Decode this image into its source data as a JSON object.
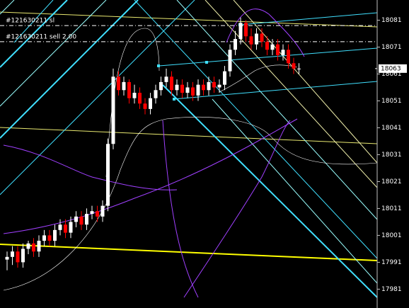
{
  "chart_data": {
    "type": "candlestick",
    "ylim": [
      17974,
      18088.5
    ],
    "yticks": [
      18081,
      18071,
      18061,
      18051,
      18041,
      18031,
      18021,
      18011,
      18001,
      17991,
      17981
    ],
    "up_color": "#ffffff",
    "down_color": "#ff0000",
    "open": [
      17992,
      17993,
      17995,
      17991,
      17996,
      17998,
      17995,
      17999,
      18001,
      17999,
      18003,
      18005,
      18002,
      18006,
      18008,
      18005,
      18009,
      18010,
      18008,
      18012,
      18035,
      18060,
      18055,
      18058,
      18052,
      18054,
      18050,
      18048,
      18052,
      18055,
      18058,
      18060,
      18055,
      18057,
      18054,
      18056,
      18053,
      18057,
      18055,
      18058,
      18056,
      18057,
      18062,
      18070,
      18074,
      18080,
      18075,
      18072,
      18076,
      18073,
      18070,
      18072,
      18068,
      18070,
      18065,
      18063
    ],
    "high": [
      17995,
      17997,
      17997,
      17998,
      17999,
      18000,
      18001,
      18003,
      18003,
      18005,
      18007,
      18007,
      18008,
      18010,
      18010,
      18011,
      18012,
      18012,
      18014,
      18037,
      18063,
      18062,
      18060,
      18059,
      18057,
      18056,
      18052,
      18054,
      18057,
      18060,
      18063,
      18062,
      18059,
      18059,
      18058,
      18058,
      18059,
      18059,
      18060,
      18060,
      18059,
      18064,
      18072,
      18077,
      18082,
      18081,
      18078,
      18078,
      18078,
      18075,
      18074,
      18074,
      18072,
      18072,
      18067,
      18065
    ],
    "low": [
      17988,
      17990,
      17989,
      17989,
      17994,
      17993,
      17993,
      17997,
      17997,
      17997,
      18001,
      18000,
      18000,
      18004,
      18003,
      18003,
      18007,
      18006,
      18006,
      18010,
      18033,
      18053,
      18053,
      18050,
      18050,
      18048,
      18046,
      18046,
      18050,
      18053,
      18056,
      18053,
      18053,
      18052,
      18052,
      18051,
      18051,
      18053,
      18053,
      18054,
      18054,
      18055,
      18060,
      18068,
      18072,
      18073,
      18070,
      18070,
      18071,
      18068,
      18068,
      18066,
      18066,
      18063,
      18061,
      18061
    ],
    "close": [
      17993,
      17995,
      17991,
      17996,
      17998,
      17995,
      17999,
      18001,
      17999,
      18003,
      18005,
      18002,
      18006,
      18008,
      18005,
      18009,
      18010,
      18008,
      18012,
      18035,
      18060,
      18055,
      18058,
      18052,
      18054,
      18050,
      18048,
      18052,
      18055,
      18058,
      18060,
      18055,
      18057,
      18054,
      18056,
      18053,
      18057,
      18055,
      18058,
      18056,
      18057,
      18062,
      18070,
      18074,
      18080,
      18075,
      18072,
      18076,
      18073,
      18070,
      18072,
      18068,
      18070,
      18065,
      18063,
      18063
    ],
    "current_price": 18063,
    "orders": [
      {
        "label": "#121630211 sl",
        "price": 18079
      },
      {
        "label": "#121630211 sell 2.00",
        "price": 18073
      }
    ]
  }
}
